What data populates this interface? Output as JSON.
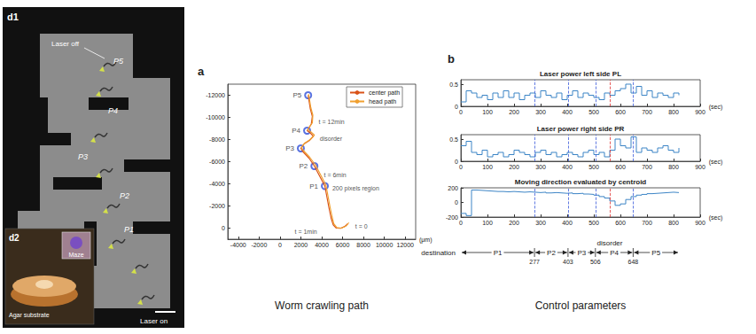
{
  "panel_d1": {
    "letter": "d1",
    "laser_off": "Laser off",
    "laser_on": "Laser on",
    "points": [
      "P5",
      "P4",
      "P3",
      "P2",
      "P1"
    ],
    "inset": {
      "letter": "d2",
      "substrate": "Agar substrate",
      "maze": "Maze"
    }
  },
  "chart_data": [
    {
      "type": "line",
      "panel": "a",
      "caption": "Worm crawling path",
      "x_label": "(μm)",
      "xlim": [
        -5000,
        13000
      ],
      "xticks": [
        -4000,
        -2000,
        0,
        2000,
        4000,
        6000,
        8000,
        10000,
        12000
      ],
      "ylim": [
        1000,
        -13000
      ],
      "yticks": [
        -12000,
        -10000,
        -8000,
        -6000,
        -4000,
        -2000,
        0
      ],
      "grid": false,
      "legend": "upper right",
      "series": [
        {
          "name": "center path",
          "color": "#d95319",
          "x": [
            6500,
            6200,
            5800,
            5400,
            5100,
            4900,
            4700,
            4500,
            4300,
            3800,
            3300,
            2800,
            2200,
            2000,
            2300,
            2800,
            3200,
            2900,
            2600,
            3000,
            3100,
            2900,
            2800,
            2700
          ],
          "values": [
            -400,
            -150,
            20,
            0,
            -300,
            -900,
            -1800,
            -2800,
            -3800,
            -4700,
            -5600,
            -6300,
            -6900,
            -7200,
            -7600,
            -7900,
            -8300,
            -8600,
            -8800,
            -9400,
            -10100,
            -10800,
            -11400,
            -12000
          ]
        },
        {
          "name": "head path",
          "color": "#f0a030",
          "x": [
            6600,
            6350,
            5900,
            5450,
            5150,
            5000,
            4800,
            4600,
            4400,
            3900,
            3400,
            2850,
            2250,
            2050,
            2400,
            2900,
            3300,
            2950,
            2650,
            3100,
            3150,
            2950,
            2850,
            2750
          ],
          "values": [
            -500,
            -200,
            0,
            -50,
            -400,
            -1000,
            -1900,
            -2900,
            -3900,
            -4800,
            -5700,
            -6400,
            -7000,
            -7300,
            -7700,
            -8000,
            -8400,
            -8700,
            -8900,
            -9500,
            -10200,
            -10900,
            -11500,
            -12100
          ]
        },
        {
          "type": "scatter",
          "marker": "circle",
          "color": "#2f4fd8",
          "x": [
            4300,
            3300,
            2000,
            2600,
            2700
          ],
          "values": [
            -3800,
            -5600,
            -7200,
            -8800,
            -12000
          ],
          "labels": [
            "P1",
            "P2",
            "P3",
            "P4",
            "P5"
          ]
        }
      ],
      "annotations": [
        {
          "text": "t = 0",
          "x": 7000,
          "y": -200
        },
        {
          "text": "t = 1min",
          "x": 1200,
          "y": 300
        },
        {
          "text": "200 pixels region",
          "x": 4800,
          "y": -3600
        },
        {
          "text": "t = 6min",
          "x": 4000,
          "y": -4800
        },
        {
          "text": "disorder",
          "x": 3600,
          "y": -8100
        },
        {
          "text": "t = 12min",
          "x": 3500,
          "y": -9600
        }
      ]
    },
    {
      "type": "line",
      "line_style": "step",
      "title": "Laser power left side PL",
      "color": "#3d85c6",
      "x": [
        0,
        20,
        40,
        60,
        80,
        100,
        120,
        140,
        160,
        180,
        200,
        220,
        240,
        260,
        280,
        300,
        320,
        340,
        360,
        380,
        400,
        420,
        440,
        460,
        480,
        500,
        520,
        540,
        560,
        580,
        600,
        620,
        640,
        660,
        680,
        700,
        720,
        740,
        760,
        780,
        800,
        820
      ],
      "values": [
        0.1,
        0.35,
        0.3,
        0.2,
        0.25,
        0.15,
        0.3,
        0.2,
        0.35,
        0.2,
        0.3,
        0.15,
        0.25,
        0.3,
        0.2,
        0.35,
        0.25,
        0.2,
        0.3,
        0.15,
        0.25,
        0.35,
        0.2,
        0.3,
        0.25,
        0.2,
        0.15,
        0.3,
        0.25,
        0.35,
        0.4,
        0.5,
        0.3,
        0.45,
        0.25,
        0.35,
        0.2,
        0.3,
        0.25,
        0.2,
        0.3,
        0.25
      ],
      "xlim": [
        0,
        900
      ],
      "xticks": [
        0,
        100,
        200,
        300,
        400,
        500,
        600,
        700,
        800,
        900
      ],
      "x_label": "(sec)",
      "ylim": [
        0,
        0.6
      ],
      "yticks": [
        0,
        0.5
      ],
      "grid": false
    },
    {
      "type": "line",
      "line_style": "step",
      "title": "Laser power right side PR",
      "color": "#3d85c6",
      "x": [
        0,
        20,
        40,
        60,
        80,
        100,
        120,
        140,
        160,
        180,
        200,
        220,
        240,
        260,
        280,
        300,
        320,
        340,
        360,
        380,
        400,
        420,
        440,
        460,
        480,
        500,
        520,
        540,
        560,
        580,
        600,
        620,
        640,
        660,
        680,
        700,
        720,
        740,
        760,
        780,
        800,
        820
      ],
      "values": [
        0.35,
        0.45,
        0.2,
        0.15,
        0.25,
        0.1,
        0.15,
        0.2,
        0.1,
        0.15,
        0.25,
        0.2,
        0.15,
        0.1,
        0.2,
        0.25,
        0.15,
        0.2,
        0.1,
        0.15,
        0.2,
        0.15,
        0.1,
        0.2,
        0.25,
        0.15,
        0.2,
        0.1,
        0.25,
        0.5,
        0.35,
        0.3,
        0.55,
        0.2,
        0.3,
        0.25,
        0.2,
        0.3,
        0.35,
        0.25,
        0.2,
        0.3
      ],
      "xlim": [
        0,
        900
      ],
      "xticks": [
        0,
        100,
        200,
        300,
        400,
        500,
        600,
        700,
        800,
        900
      ],
      "x_label": "(sec)",
      "ylim": [
        0,
        0.6
      ],
      "yticks": [
        0,
        0.5
      ],
      "grid": false
    },
    {
      "type": "line",
      "line_style": "step",
      "title": "Moving direction evaluated by centroid",
      "color": "#3d85c6",
      "x": [
        0,
        20,
        40,
        60,
        80,
        100,
        120,
        140,
        160,
        180,
        200,
        220,
        240,
        260,
        280,
        300,
        320,
        340,
        360,
        380,
        400,
        420,
        440,
        460,
        480,
        500,
        520,
        540,
        560,
        580,
        600,
        620,
        640,
        660,
        680,
        700,
        720,
        740,
        760,
        780,
        800,
        820
      ],
      "values": [
        -150,
        -180,
        170,
        165,
        160,
        155,
        150,
        150,
        145,
        150,
        145,
        140,
        145,
        140,
        135,
        140,
        130,
        135,
        130,
        125,
        130,
        120,
        125,
        115,
        110,
        100,
        80,
        60,
        20,
        -40,
        -20,
        40,
        80,
        100,
        110,
        120,
        125,
        130,
        135,
        140,
        135,
        140
      ],
      "xlim": [
        0,
        900
      ],
      "xticks": [
        0,
        100,
        200,
        300,
        400,
        500,
        600,
        700,
        800,
        900
      ],
      "x_label": "(sec)",
      "ylim": [
        -200,
        200
      ],
      "yticks": [
        -200,
        0,
        200
      ],
      "grid": false
    }
  ],
  "timeline": {
    "panel": "b",
    "caption": "Control parameters",
    "row_title": "destination",
    "boundaries": [
      277,
      403,
      506,
      648
    ],
    "phases": [
      {
        "label": "P1",
        "from": 0,
        "to": 277
      },
      {
        "label": "P2",
        "from": 277,
        "to": 403
      },
      {
        "label": "P3",
        "from": 403,
        "to": 506
      },
      {
        "label": "P4",
        "from": 506,
        "to": 648
      },
      {
        "label": "P5",
        "from": 648,
        "to": 820
      }
    ],
    "disorder": {
      "label": "disorder",
      "x": 560
    }
  }
}
